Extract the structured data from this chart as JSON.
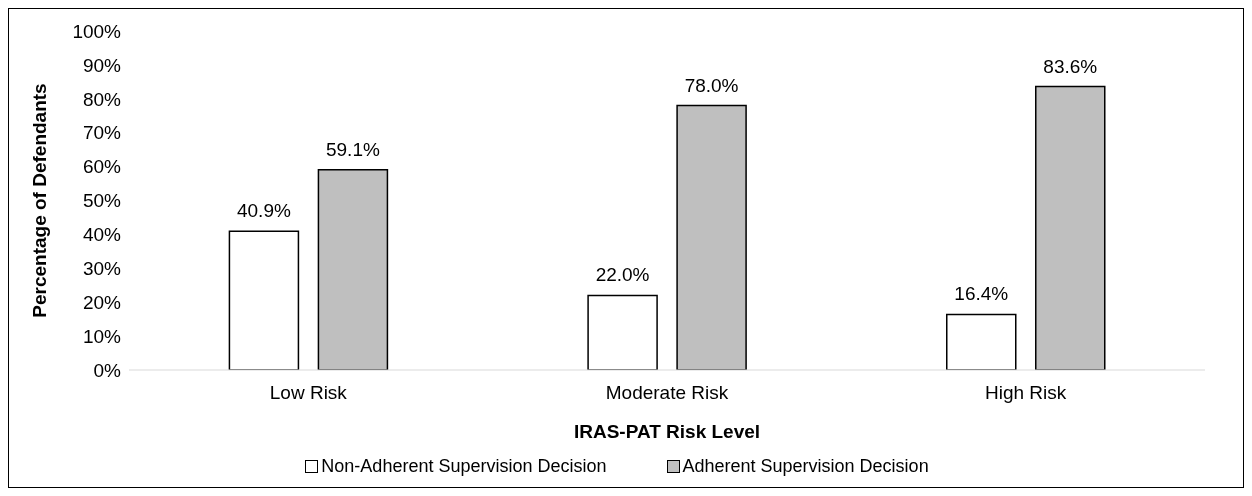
{
  "chart_data": {
    "type": "bar",
    "xlabel": "IRAS-PAT Risk Level",
    "ylabel": "Percentage of Defendants",
    "categories": [
      "Low Risk",
      "Moderate Risk",
      "High Risk"
    ],
    "series": [
      {
        "name": "Non-Adherent Supervision Decision",
        "color": "#ffffff",
        "values": [
          40.9,
          22.0,
          16.4
        ],
        "value_labels": [
          "40.9%",
          "22.0%",
          "16.4%"
        ]
      },
      {
        "name": "Adherent Supervision Decision",
        "color": "#bfbfbf",
        "values": [
          59.1,
          78.0,
          83.6
        ],
        "value_labels": [
          "59.1%",
          "78.0%",
          "83.6%"
        ]
      }
    ],
    "ylim": [
      0,
      100
    ],
    "yticks": [
      {
        "value": 0,
        "label": "0%"
      },
      {
        "value": 10,
        "label": "10%"
      },
      {
        "value": 20,
        "label": "20%"
      },
      {
        "value": 30,
        "label": "30%"
      },
      {
        "value": 40,
        "label": "40%"
      },
      {
        "value": 50,
        "label": "50%"
      },
      {
        "value": 60,
        "label": "60%"
      },
      {
        "value": 70,
        "label": "70%"
      },
      {
        "value": 80,
        "label": "80%"
      },
      {
        "value": 90,
        "label": "90%"
      },
      {
        "value": 100,
        "label": "100%"
      }
    ],
    "grid": false,
    "legend": "bottom"
  }
}
